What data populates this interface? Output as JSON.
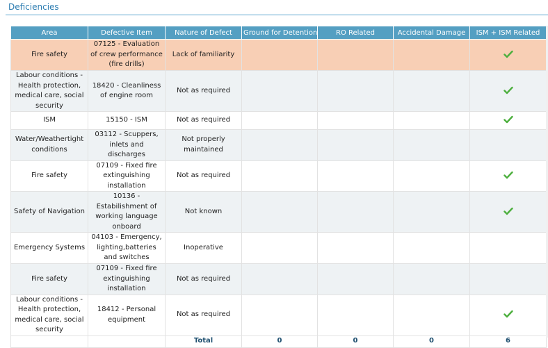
{
  "section": {
    "title": "Deficiencies"
  },
  "colors": {
    "header_bg": "#549fc2",
    "highlight_row": "#f8cfb5",
    "alt_row": "#eef2f4",
    "check": "#4caf3d"
  },
  "table": {
    "headers": [
      "Area",
      "Defective Item",
      "Nature of Defect",
      "Ground for Detention",
      "RO Related",
      "Accidental Damage",
      "ISM + ISM Related"
    ],
    "rows": [
      {
        "area": "Fire safety",
        "item": "07125 - Evaluation of crew performance (fire drills)",
        "nature": "Lack of familiarity",
        "ism_icon": "check-icon"
      },
      {
        "area": "Labour conditions - Health protection, medical care, social security",
        "item": "18420 - Cleanliness of engine room",
        "nature": "Not as required",
        "ism_icon": "check-icon"
      },
      {
        "area": "ISM",
        "item": "15150 - ISM",
        "nature": "Not as required",
        "ism_icon": "check-icon"
      },
      {
        "area": "Water/Weathertight conditions",
        "item": "03112 - Scuppers, inlets and discharges",
        "nature": "Not properly maintained",
        "ism_icon": ""
      },
      {
        "area": "Fire safety",
        "item": "07109 - Fixed fire extinguishing installation",
        "nature": "Not as required",
        "ism_icon": "check-icon"
      },
      {
        "area": "Safety of Navigation",
        "item": "10136 - Estabilishment of working language onboard",
        "nature": "Not known",
        "ism_icon": "check-icon"
      },
      {
        "area": "Emergency Systems",
        "item": "04103 - Emergency, lighting,batteries and switches",
        "nature": "Inoperative",
        "ism_icon": ""
      },
      {
        "area": "Fire safety",
        "item": "07109 - Fixed fire extinguishing installation",
        "nature": "Not as required",
        "ism_icon": ""
      },
      {
        "area": "Labour conditions - Health protection, medical care, social security",
        "item": "18412 - Personal equipment",
        "nature": "Not as required",
        "ism_icon": "check-icon"
      }
    ],
    "total": {
      "label": "Total",
      "detention": "0",
      "ro": "0",
      "accidental": "0",
      "ism": "6"
    }
  }
}
